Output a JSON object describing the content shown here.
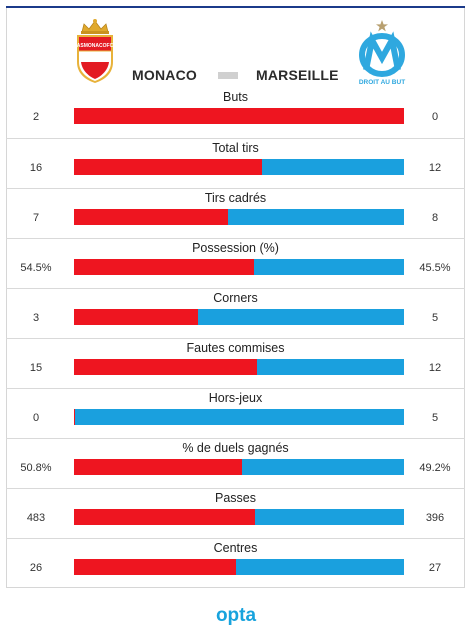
{
  "header": {
    "home_team": "MONACO",
    "away_team": "MARSEILLE",
    "home_crest_text": "ASMONACOFC",
    "away_crest_text": "DROIT AU BUT"
  },
  "colors": {
    "home": "#ee1520",
    "away": "#1aa0de"
  },
  "stats": [
    {
      "label": "Buts",
      "home": "2",
      "away": "0",
      "home_share": 1.0
    },
    {
      "label": "Total tirs",
      "home": "16",
      "away": "12",
      "home_share": 0.571
    },
    {
      "label": "Tirs cadrés",
      "home": "7",
      "away": "8",
      "home_share": 0.467
    },
    {
      "label": "Possession (%)",
      "home": "54.5%",
      "away": "45.5%",
      "home_share": 0.545
    },
    {
      "label": "Corners",
      "home": "3",
      "away": "5",
      "home_share": 0.375
    },
    {
      "label": "Fautes commises",
      "home": "15",
      "away": "12",
      "home_share": 0.556
    },
    {
      "label": "Hors-jeux",
      "home": "0",
      "away": "5",
      "home_share": 0.0
    },
    {
      "label": "% de duels gagnés",
      "home": "50.8%",
      "away": "49.2%",
      "home_share": 0.508
    },
    {
      "label": "Passes",
      "home": "483",
      "away": "396",
      "home_share": 0.549
    },
    {
      "label": "Centres",
      "home": "26",
      "away": "27",
      "home_share": 0.491
    }
  ],
  "footer": {
    "brand": "opta"
  }
}
